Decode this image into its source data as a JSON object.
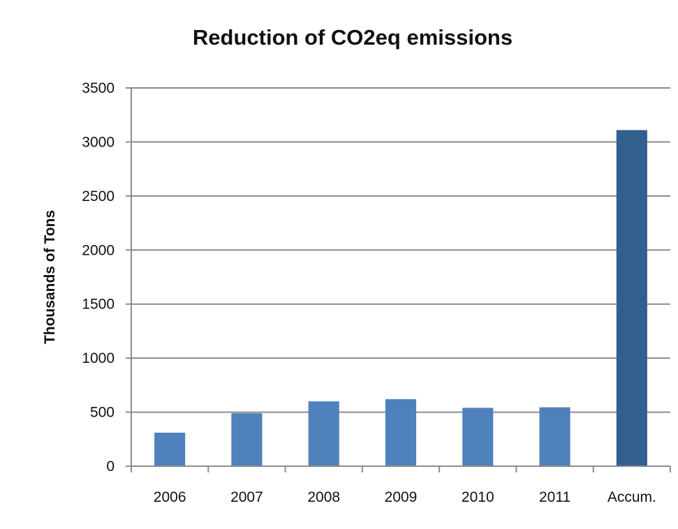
{
  "chart_data": {
    "type": "bar",
    "title": "Reduction of CO2eq emissions",
    "xlabel": "",
    "ylabel": "Thousands of Tons",
    "categories": [
      "2006",
      "2007",
      "2008",
      "2009",
      "2010",
      "2011",
      "Accum."
    ],
    "values": [
      310,
      490,
      600,
      620,
      540,
      545,
      3110
    ],
    "yticks": [
      0,
      500,
      1000,
      1500,
      2000,
      2500,
      3000,
      3500
    ],
    "ylim": [
      0,
      3500
    ],
    "grid": true,
    "legend": "none",
    "colors": {
      "bar": "#4f81bd",
      "highlight_bar": "#335f8f",
      "gridline": "#8c8c8c",
      "axis": "#8c8c8c",
      "text": "#111111"
    },
    "highlight_category": "Accum."
  }
}
